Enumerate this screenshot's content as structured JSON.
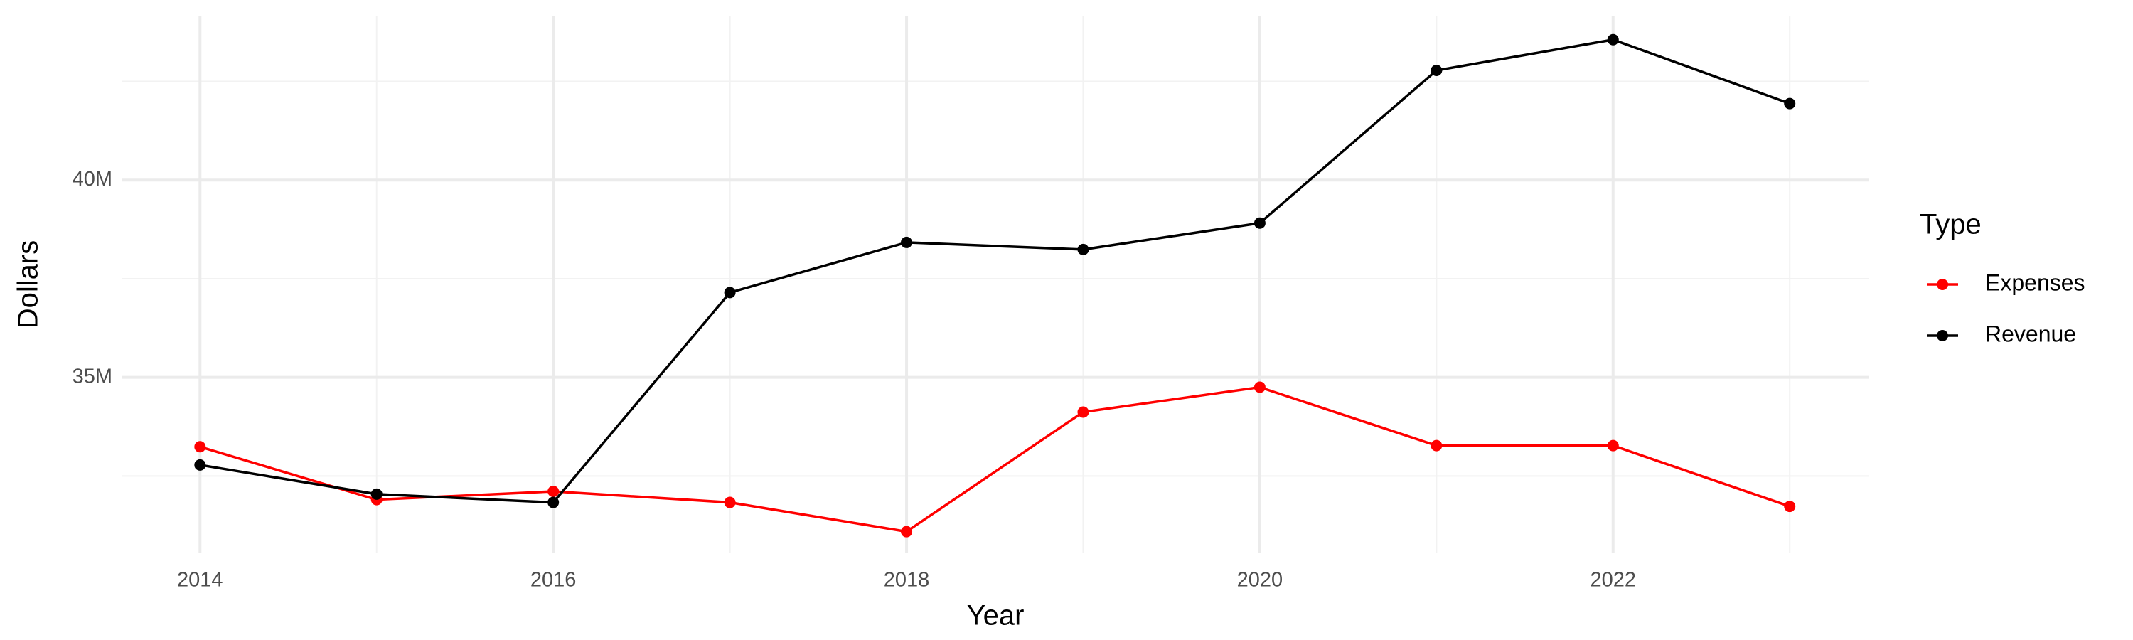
{
  "chart_data": {
    "type": "line",
    "x_label": "Year",
    "y_label": "Dollars",
    "legend_title": "Type",
    "x": [
      2014,
      2015,
      2016,
      2017,
      2018,
      2019,
      2020,
      2021,
      2022,
      2023
    ],
    "series": [
      {
        "name": "Expenses",
        "color": "#ff0000",
        "values": [
          33240000,
          31900000,
          32110000,
          31830000,
          31090000,
          34120000,
          34750000,
          33270000,
          33270000,
          31730000
        ]
      },
      {
        "name": "Revenue",
        "color": "#000000",
        "values": [
          32780000,
          32040000,
          31830000,
          37150000,
          38420000,
          38240000,
          38910000,
          42780000,
          43560000,
          41940000
        ]
      }
    ],
    "xlim": [
      2013.56,
      2023.45
    ],
    "xticks": [
      2014,
      2016,
      2018,
      2020,
      2022
    ],
    "ylim": [
      30560000,
      44150000
    ],
    "yticks": [
      {
        "value": 35000000,
        "label": "35M"
      },
      {
        "value": 40000000,
        "label": "40M"
      }
    ],
    "grid": true,
    "legend": "right"
  }
}
